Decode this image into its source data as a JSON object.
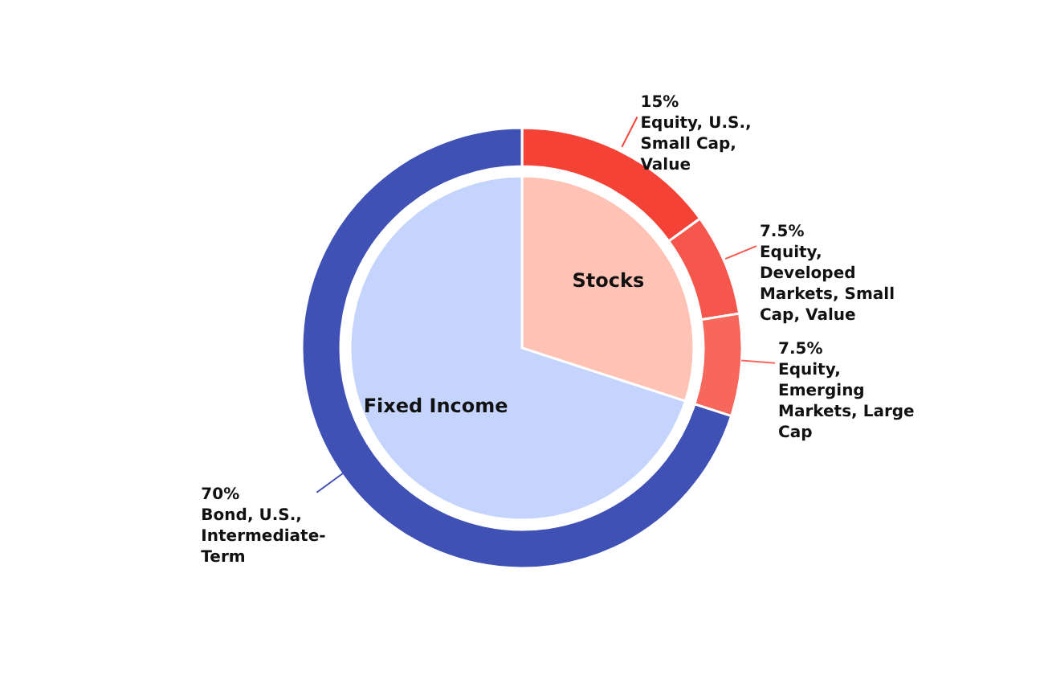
{
  "chart_data": {
    "type": "donut",
    "categories": [
      "Equity, U.S., Small Cap, Value",
      "Equity, Developed Markets, Small Cap, Value",
      "Equity, Emerging Markets, Large Cap",
      "Bond, U.S., Intermediate-Term"
    ],
    "series": [
      {
        "values": [
          15,
          7.5,
          7.5,
          70
        ],
        "colors": [
          "#f44336",
          "#f5574c",
          "#f7675c",
          "#3f51b5"
        ],
        "value_labels": [
          "15%",
          "7.5%",
          "7.5%",
          "70%"
        ]
      },
      {
        "type": "pie",
        "values": [
          30,
          null,
          null,
          70
        ],
        "colors": [
          "#ffc3b6",
          null,
          null,
          "#c4d4fd"
        ]
      }
    ],
    "annotations": [
      "Stocks",
      "Fixed Income"
    ]
  }
}
